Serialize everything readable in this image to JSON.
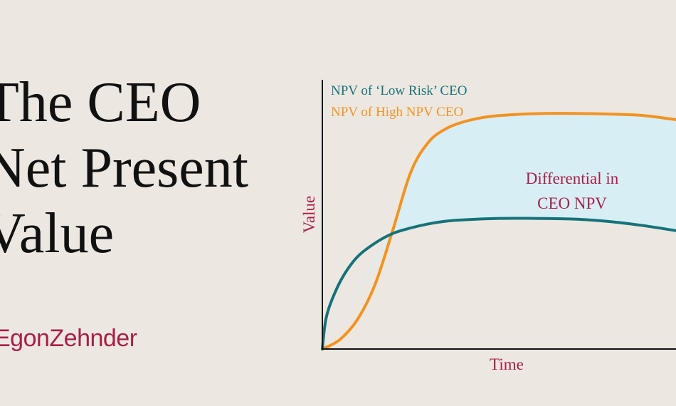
{
  "title": {
    "line1": "The CEO",
    "line2": "Net Present",
    "line3": "Value"
  },
  "logo": {
    "text": "EgonZehnder"
  },
  "colors": {
    "background": "#ece8e1",
    "low_risk": "#16727a",
    "high_npv": "#f39221",
    "fill": "#d7eef5",
    "label": "#a81f45",
    "axis": "#111111"
  },
  "chart_data": {
    "type": "line",
    "title": "",
    "xlabel": "Time",
    "ylabel": "Value",
    "xlim": [
      0,
      100
    ],
    "ylim": [
      0,
      100
    ],
    "grid": false,
    "legend": "top-left",
    "legend_entries": [
      "NPV of ‘Low Risk’ CEO",
      "NPV of High NPV CEO"
    ],
    "annotation_line1": "Differential in",
    "annotation_line2": "CEO NPV",
    "series": [
      {
        "name": "NPV of ‘Low Risk’ CEO",
        "color": "#16727a",
        "x": [
          0,
          1,
          3,
          6,
          10,
          15,
          20,
          25,
          30,
          35,
          40,
          50,
          60,
          70,
          80,
          90,
          100
        ],
        "y": [
          0,
          11,
          19,
          27,
          34,
          39,
          42.5,
          44.5,
          46,
          47,
          47.5,
          48,
          48,
          47.8,
          47,
          45.5,
          43.5
        ]
      },
      {
        "name": "NPV of High NPV CEO",
        "color": "#f39221",
        "x": [
          0,
          5,
          10,
          15,
          20,
          25,
          30,
          35,
          40,
          45,
          50,
          60,
          70,
          80,
          90,
          100
        ],
        "y": [
          0,
          3.5,
          11,
          24,
          44,
          65,
          76,
          81,
          83.5,
          85,
          85.8,
          86.5,
          86.6,
          86.4,
          85.9,
          84.3
        ]
      }
    ]
  }
}
